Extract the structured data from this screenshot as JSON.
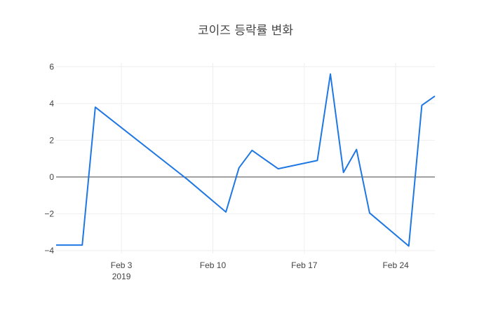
{
  "chart_data": {
    "type": "line",
    "title": "코이즈 등락률 변화",
    "xlabel": "",
    "ylabel": "",
    "x_tick_labels": [
      "Feb 3",
      "Feb 10",
      "Feb 17",
      "Feb 24"
    ],
    "x_tick_dates": [
      "2019-02-03",
      "2019-02-10",
      "2019-02-17",
      "2019-02-24"
    ],
    "x_year_label": "2019",
    "xlim": [
      "2019-01-29",
      "2019-02-27"
    ],
    "y_ticks": [
      6,
      4,
      2,
      0,
      -2,
      -4
    ],
    "ylim": [
      -4.15,
      6.2
    ],
    "grid": true,
    "zero_line": true,
    "series": [
      {
        "color": "#1f77e4",
        "x": [
          "2019-01-29",
          "2019-01-30",
          "2019-01-31",
          "2019-02-01",
          "2019-02-08",
          "2019-02-11",
          "2019-02-12",
          "2019-02-13",
          "2019-02-15",
          "2019-02-18",
          "2019-02-19",
          "2019-02-20",
          "2019-02-21",
          "2019-02-22",
          "2019-02-25",
          "2019-02-26",
          "2019-02-27"
        ],
        "values": [
          -3.7,
          -3.7,
          -3.7,
          3.8,
          -0.1,
          -1.9,
          0.5,
          1.45,
          0.45,
          0.9,
          5.6,
          0.25,
          1.5,
          -1.95,
          -3.75,
          3.9,
          4.4
        ]
      }
    ]
  }
}
